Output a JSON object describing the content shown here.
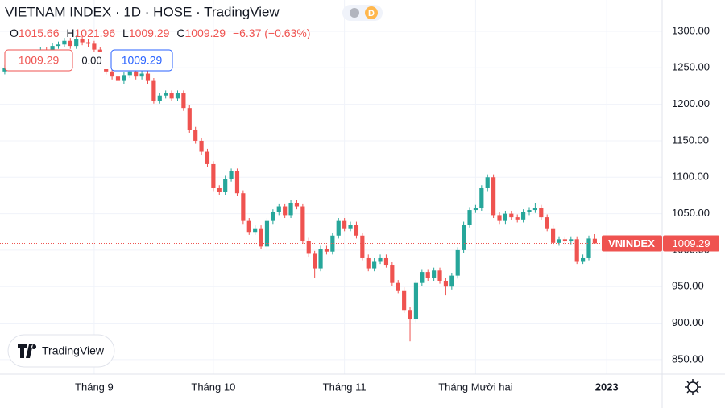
{
  "chart_data": {
    "type": "candlestick",
    "title": "VIETNAM INDEX · 1D · HOSE · TradingView",
    "interval_badge": "D",
    "legend_labels": {
      "open": "O",
      "high": "H",
      "low": "L",
      "close": "C"
    },
    "change_label": "−6.37 (−0.63%)",
    "order_panel": {
      "sell": "1009.29",
      "spread": "0.00",
      "buy": "1009.29"
    },
    "symbol_tag": "VNINDEX",
    "watermark": "TradingView",
    "up_color": "#26a69a",
    "down_color": "#ef5350",
    "grid": true,
    "xlim": [
      -0.8,
      110.3
    ],
    "xticks": [
      {
        "value": 15,
        "label": "Tháng 9"
      },
      {
        "value": 35,
        "label": "Tháng 10"
      },
      {
        "value": 57,
        "label": "Tháng 11"
      },
      {
        "value": 79,
        "label": "Tháng Mười hai"
      },
      {
        "value": 101,
        "label": "2023"
      }
    ],
    "ylim": [
      830,
      1343
    ],
    "yticks": [
      {
        "value": 850,
        "label": "850.00"
      },
      {
        "value": 900,
        "label": "900.00"
      },
      {
        "value": 950,
        "label": "950.00"
      },
      {
        "value": 1000,
        "label": "1000.00"
      },
      {
        "value": 1050,
        "label": "1050.00"
      },
      {
        "value": 1100,
        "label": "1100.00"
      },
      {
        "value": 1150,
        "label": "1150.00"
      },
      {
        "value": 1200,
        "label": "1200.00"
      },
      {
        "value": 1250,
        "label": "1250.00"
      },
      {
        "value": 1300,
        "label": "1300.00"
      }
    ],
    "open": [
      1245,
      1250,
      1255,
      1262,
      1258,
      1266,
      1270,
      1275,
      1268,
      1280,
      1282,
      1287,
      1280,
      1290,
      1285,
      1283,
      1275,
      1258,
      1245,
      1238,
      1232,
      1240,
      1245,
      1238,
      1242,
      1232,
      1205,
      1212,
      1215,
      1208,
      1215,
      1195,
      1165,
      1150,
      1135,
      1118,
      1085,
      1080,
      1098,
      1108,
      1078,
      1040,
      1025,
      1030,
      1005,
      1040,
      1052,
      1060,
      1048,
      1065,
      1060,
      1013,
      995,
      975,
      1002,
      998,
      1020,
      1040,
      1030,
      1035,
      1020,
      990,
      975,
      985,
      990,
      980,
      955,
      945,
      918,
      905,
      955,
      970,
      962,
      972,
      958,
      950,
      965,
      1000,
      1035,
      1055,
      1058,
      1085,
      1100,
      1048,
      1040,
      1050,
      1045,
      1042,
      1052,
      1055,
      1058,
      1045,
      1030,
      1010,
      1015,
      1012,
      1015,
      985,
      990,
      1015.66
    ],
    "high": [
      1254,
      1259,
      1266,
      1266,
      1270,
      1274,
      1279,
      1279,
      1284,
      1286,
      1291,
      1291,
      1294,
      1294,
      1289,
      1287,
      1279,
      1262,
      1249,
      1242,
      1244,
      1249,
      1249,
      1246,
      1246,
      1236,
      1216,
      1219,
      1219,
      1219,
      1219,
      1199,
      1169,
      1154,
      1139,
      1122,
      1089,
      1102,
      1112,
      1112,
      1082,
      1044,
      1034,
      1034,
      1044,
      1056,
      1064,
      1064,
      1069,
      1069,
      1064,
      1017,
      999,
      1006,
      1006,
      1024,
      1044,
      1044,
      1039,
      1039,
      1024,
      994,
      989,
      994,
      994,
      984,
      959,
      949,
      922,
      959,
      974,
      974,
      976,
      976,
      962,
      969,
      1004,
      1039,
      1059,
      1062,
      1089,
      1104,
      1104,
      1052,
      1054,
      1054,
      1049,
      1056,
      1059,
      1065,
      1062,
      1049,
      1034,
      1019,
      1019,
      1019,
      1019,
      994,
      1020,
      1021.96
    ],
    "low": [
      1241,
      1246,
      1251,
      1254,
      1254,
      1262,
      1266,
      1264,
      1264,
      1276,
      1278,
      1276,
      1276,
      1281,
      1279,
      1271,
      1254,
      1241,
      1234,
      1228,
      1228,
      1236,
      1234,
      1234,
      1228,
      1201,
      1201,
      1208,
      1204,
      1204,
      1191,
      1161,
      1146,
      1131,
      1114,
      1081,
      1076,
      1076,
      1094,
      1074,
      1036,
      1021,
      1021,
      1001,
      1001,
      1036,
      1048,
      1044,
      1044,
      1056,
      1009,
      991,
      962,
      971,
      994,
      994,
      1016,
      1026,
      1026,
      1016,
      986,
      971,
      971,
      981,
      976,
      951,
      941,
      914,
      875,
      901,
      951,
      958,
      958,
      954,
      938,
      946,
      961,
      996,
      1031,
      1051,
      1054,
      1081,
      1044,
      1036,
      1036,
      1041,
      1038,
      1038,
      1048,
      1051,
      1041,
      1026,
      1006,
      1006,
      1008,
      1008,
      981,
      981,
      986,
      1009.29
    ],
    "close": [
      1250,
      1255,
      1262,
      1258,
      1266,
      1270,
      1275,
      1268,
      1280,
      1282,
      1287,
      1280,
      1290,
      1285,
      1283,
      1275,
      1258,
      1245,
      1238,
      1232,
      1240,
      1245,
      1238,
      1242,
      1232,
      1205,
      1212,
      1215,
      1208,
      1215,
      1195,
      1165,
      1150,
      1135,
      1118,
      1085,
      1080,
      1098,
      1108,
      1078,
      1040,
      1025,
      1030,
      1005,
      1040,
      1052,
      1060,
      1048,
      1065,
      1060,
      1013,
      995,
      975,
      1002,
      998,
      1020,
      1040,
      1030,
      1035,
      1020,
      990,
      975,
      985,
      990,
      980,
      955,
      945,
      918,
      905,
      955,
      970,
      962,
      972,
      958,
      950,
      965,
      1000,
      1035,
      1055,
      1058,
      1085,
      1100,
      1048,
      1040,
      1050,
      1045,
      1042,
      1052,
      1055,
      1058,
      1045,
      1030,
      1010,
      1015,
      1012,
      1015,
      985,
      990,
      1016,
      1009.29
    ]
  }
}
